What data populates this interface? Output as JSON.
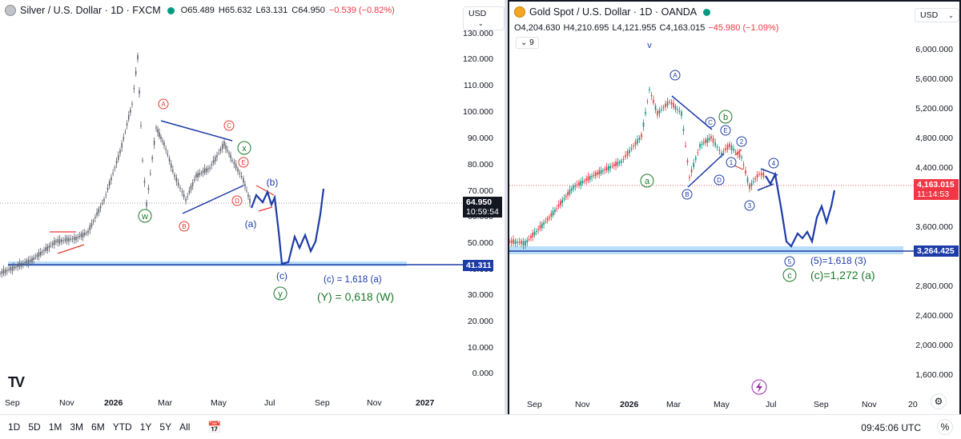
{
  "left": {
    "symbol": "Silver / U.S. Dollar · 1D · FXCM",
    "open": "O65.489",
    "high": "H65.632",
    "low": "L63.131",
    "close": "C64.950",
    "change": "−0.539 (−0.82%)",
    "currency": "USD",
    "price_axis": [
      "130.000",
      "120.000",
      "110.000",
      "100.000",
      "90.000",
      "80.000",
      "70.000",
      "60.000",
      "50.000",
      "40.000",
      "30.000",
      "20.000",
      "10.000",
      "0.000"
    ],
    "time_axis": [
      "Sep",
      "Nov",
      "2026",
      "Mar",
      "May",
      "Jul",
      "Sep",
      "Nov",
      "2027"
    ],
    "last_price": "64.950",
    "countdown": "10:59:54",
    "target_price": "41.311",
    "annotations": {
      "A": "A",
      "B": "B",
      "C": "C",
      "D": "D",
      "E": "E",
      "w": "w",
      "x": "x",
      "y": "y",
      "a": "(a)",
      "b": "(b)",
      "c": "(c)",
      "fib_c": "(c) = 1,618 (a)",
      "fib_y": "(Y) = 0,618 (W)"
    },
    "logo": "TV"
  },
  "right": {
    "symbol": "Gold Spot / U.S. Dollar · 1D · OANDA",
    "open": "O4,204.630",
    "high": "H4,210.695",
    "low": "L4,121.955",
    "close": "C4,163.015",
    "change": "−45.980 (−1.09%)",
    "currency": "USD",
    "interval_chip": "9",
    "price_axis": [
      "6,000.000",
      "5,600.000",
      "5,200.000",
      "4,800.000",
      "4,400.000",
      "3,600.000",
      "2,800.000",
      "2,400.000",
      "2,000.000",
      "1,600.000"
    ],
    "time_axis": [
      "Sep",
      "Nov",
      "2026",
      "Mar",
      "May",
      "Jul",
      "Sep",
      "Nov",
      "20"
    ],
    "last_price": "4,163.015",
    "countdown": "11:14:53",
    "target_price": "3,264.425",
    "annotations": {
      "A": "A",
      "B": "B",
      "C": "C",
      "D": "D",
      "E": "E",
      "a": "a",
      "b": "b",
      "c": "c",
      "n1": "1",
      "n2": "2",
      "n3": "3",
      "n4": "4",
      "n5": "5",
      "v": "v",
      "fib_5": "(5)=1,618 (3)",
      "fib_c": "(c)=1,272 (a)"
    }
  },
  "bottom": {
    "ranges": [
      "1D",
      "5D",
      "1M",
      "3M",
      "6M",
      "YTD",
      "1Y",
      "5Y",
      "All"
    ],
    "clock": "09:45:06 UTC",
    "percent": "%"
  },
  "colors": {
    "up": "#089981",
    "down": "#f23645",
    "wave_blue": "#1e3ca8",
    "wave_green": "#1b7a2a",
    "wave_red": "#e53935",
    "target_band": "#bbdefb"
  }
}
